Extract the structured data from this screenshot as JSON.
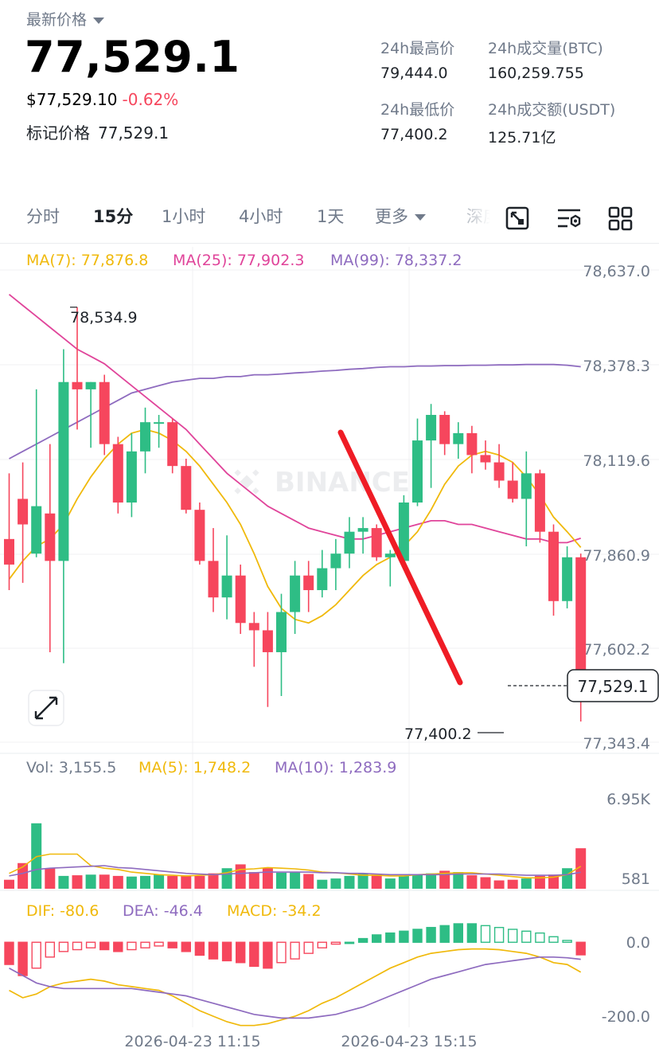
{
  "header": {
    "label": "最新价格",
    "last_price": "77,529.1",
    "usd_price": "$77,529.10",
    "change_pct": "-0.62%",
    "mark_label": "标记价格",
    "mark_price": "77,529.1",
    "stats": [
      {
        "label": "24h最高价",
        "value": "79,444.0"
      },
      {
        "label": "24h成交量(BTC)",
        "value": "160,259.755"
      },
      {
        "label": "24h最低价",
        "value": "77,400.2"
      },
      {
        "label": "24h成交额(USDT)",
        "value": "125.71亿"
      }
    ]
  },
  "tabs": [
    "分时",
    "15分",
    "1小时",
    "4小时",
    "1天",
    "更多",
    "深度"
  ],
  "active_tab": "15分",
  "colors": {
    "up": "#2ebd85",
    "down": "#f6465d",
    "ma7": "#f0b90b",
    "ma25": "#e0449a",
    "ma99": "#8e6bbf",
    "trend_line": "#ef1c25"
  },
  "legend": {
    "ma7": "MA(7): 77,876.8",
    "ma25": "MA(25): 77,902.3",
    "ma99": "MA(99): 78,337.2",
    "vol": "Vol: 3,155.5",
    "vol_ma5": "MA(5): 1,748.2",
    "vol_ma10": "MA(10): 1,283.9",
    "dif": "DIF: -80.6",
    "dea": "DEA: -46.4",
    "macd": "MACD: -34.2"
  },
  "chart_data": {
    "type": "candlestick",
    "interval": "15m",
    "price_axis_ticks": [
      "78,637.0",
      "78,378.3",
      "78,119.6",
      "77,860.9",
      "77,602.2",
      "77,343.4"
    ],
    "ylim": [
      77343.4,
      78637.0
    ],
    "high_marker": "78,534.9",
    "low_marker": "77,400.2",
    "current_price_tag": "77,529.1",
    "watermark": "BINANCE",
    "x_tick_labels": [
      "2026-04-23 11:15",
      "2026-04-23 15:15"
    ],
    "candles": [
      {
        "o": 77900,
        "h": 78080,
        "l": 77760,
        "c": 77830
      },
      {
        "o": 78010,
        "h": 78110,
        "l": 77780,
        "c": 77940
      },
      {
        "o": 77860,
        "h": 78310,
        "l": 77850,
        "c": 77990
      },
      {
        "o": 77970,
        "h": 78160,
        "l": 77590,
        "c": 77840
      },
      {
        "o": 77840,
        "h": 78420,
        "l": 77560,
        "c": 78330
      },
      {
        "o": 78330,
        "h": 78535,
        "l": 78200,
        "c": 78310
      },
      {
        "o": 78310,
        "h": 78330,
        "l": 78150,
        "c": 78330
      },
      {
        "o": 78330,
        "h": 78350,
        "l": 78130,
        "c": 78160
      },
      {
        "o": 78160,
        "h": 78180,
        "l": 77970,
        "c": 78000
      },
      {
        "o": 78000,
        "h": 78190,
        "l": 77960,
        "c": 78140
      },
      {
        "o": 78140,
        "h": 78260,
        "l": 78080,
        "c": 78220
      },
      {
        "o": 78220,
        "h": 78240,
        "l": 78150,
        "c": 78220
      },
      {
        "o": 78220,
        "h": 78230,
        "l": 78080,
        "c": 78100
      },
      {
        "o": 78100,
        "h": 78120,
        "l": 77970,
        "c": 77980
      },
      {
        "o": 77980,
        "h": 78000,
        "l": 77830,
        "c": 77840
      },
      {
        "o": 77840,
        "h": 77930,
        "l": 77700,
        "c": 77740
      },
      {
        "o": 77740,
        "h": 77910,
        "l": 77680,
        "c": 77800
      },
      {
        "o": 77800,
        "h": 77830,
        "l": 77640,
        "c": 77670
      },
      {
        "o": 77670,
        "h": 77700,
        "l": 77550,
        "c": 77650
      },
      {
        "o": 77650,
        "h": 77700,
        "l": 77440,
        "c": 77590
      },
      {
        "o": 77590,
        "h": 77750,
        "l": 77470,
        "c": 77700
      },
      {
        "o": 77700,
        "h": 77840,
        "l": 77640,
        "c": 77800
      },
      {
        "o": 77800,
        "h": 77840,
        "l": 77700,
        "c": 77760
      },
      {
        "o": 77760,
        "h": 77870,
        "l": 77740,
        "c": 77820
      },
      {
        "o": 77820,
        "h": 77900,
        "l": 77760,
        "c": 77860
      },
      {
        "o": 77860,
        "h": 77960,
        "l": 77820,
        "c": 77920
      },
      {
        "o": 77920,
        "h": 77960,
        "l": 77860,
        "c": 77930
      },
      {
        "o": 77930,
        "h": 77940,
        "l": 77840,
        "c": 77850
      },
      {
        "o": 77850,
        "h": 77870,
        "l": 77770,
        "c": 77860
      },
      {
        "o": 77840,
        "h": 78020,
        "l": 77830,
        "c": 78000
      },
      {
        "o": 78000,
        "h": 78230,
        "l": 77990,
        "c": 78170
      },
      {
        "o": 78170,
        "h": 78270,
        "l": 78040,
        "c": 78240
      },
      {
        "o": 78240,
        "h": 78250,
        "l": 78130,
        "c": 78160
      },
      {
        "o": 78160,
        "h": 78220,
        "l": 78120,
        "c": 78190
      },
      {
        "o": 78190,
        "h": 78210,
        "l": 78080,
        "c": 78130
      },
      {
        "o": 78130,
        "h": 78170,
        "l": 78090,
        "c": 78110
      },
      {
        "o": 78110,
        "h": 78160,
        "l": 78040,
        "c": 78060
      },
      {
        "o": 78060,
        "h": 78110,
        "l": 78000,
        "c": 78010
      },
      {
        "o": 78010,
        "h": 78140,
        "l": 77880,
        "c": 78080
      },
      {
        "o": 78080,
        "h": 78090,
        "l": 77890,
        "c": 77920
      },
      {
        "o": 77920,
        "h": 77940,
        "l": 77690,
        "c": 77730
      },
      {
        "o": 77730,
        "h": 77880,
        "l": 77710,
        "c": 77850
      },
      {
        "o": 77850,
        "h": 77860,
        "l": 77400,
        "c": 77529
      }
    ],
    "ma7": [
      77790,
      77840,
      77880,
      77900,
      77940,
      78010,
      78070,
      78120,
      78160,
      78190,
      78200,
      78190,
      78170,
      78140,
      78100,
      78050,
      78000,
      77940,
      77860,
      77770,
      77710,
      77680,
      77670,
      77690,
      77720,
      77760,
      77800,
      77830,
      77850,
      77880,
      77920,
      77980,
      78050,
      78100,
      78130,
      78140,
      78130,
      78110,
      78070,
      78020,
      77960,
      77920,
      77877
    ],
    "ma25": [
      78570,
      78540,
      78510,
      78480,
      78450,
      78420,
      78400,
      78380,
      78350,
      78320,
      78290,
      78260,
      78230,
      78200,
      78160,
      78120,
      78080,
      78050,
      78020,
      77990,
      77970,
      77950,
      77930,
      77920,
      77910,
      77900,
      77900,
      77910,
      77920,
      77930,
      77940,
      77950,
      77950,
      77940,
      77940,
      77930,
      77920,
      77910,
      77900,
      77900,
      77890,
      77890,
      77902
    ],
    "ma99": [
      78120,
      78140,
      78160,
      78180,
      78200,
      78220,
      78240,
      78260,
      78280,
      78300,
      78310,
      78320,
      78330,
      78335,
      78340,
      78340,
      78345,
      78345,
      78350,
      78350,
      78352,
      78355,
      78357,
      78360,
      78362,
      78365,
      78367,
      78370,
      78372,
      78372,
      78374,
      78374,
      78375,
      78375,
      78376,
      78376,
      78377,
      78377,
      78378,
      78378,
      78378,
      78376,
      78372
    ],
    "volume": {
      "axis_ticks": [
        "6.95K",
        "581"
      ],
      "ylim": [
        0,
        6950
      ],
      "values": [
        700,
        2000,
        5100,
        1600,
        1000,
        1050,
        1100,
        1100,
        1000,
        950,
        1000,
        1100,
        1000,
        1050,
        1000,
        1200,
        1600,
        1900,
        1300,
        1600,
        1250,
        1300,
        1150,
        700,
        800,
        1000,
        1200,
        1100,
        800,
        1000,
        1100,
        1200,
        1400,
        1300,
        1050,
        900,
        650,
        700,
        800,
        1000,
        1100,
        1600,
        3155
      ],
      "ma5": [
        1200,
        1700,
        2500,
        2700,
        2700,
        2700,
        1800,
        1600,
        1500,
        1300,
        1200,
        1100,
        1050,
        1000,
        1050,
        1100,
        1250,
        1500,
        1550,
        1650,
        1600,
        1550,
        1450,
        1300,
        1250,
        1150,
        1050,
        1050,
        1000,
        1000,
        1100,
        1150,
        1200,
        1250,
        1250,
        1150,
        1050,
        950,
        850,
        850,
        900,
        1100,
        1748
      ],
      "ma10": [
        1000,
        1200,
        1500,
        1600,
        1650,
        1700,
        1750,
        1800,
        1650,
        1600,
        1500,
        1400,
        1300,
        1200,
        1150,
        1100,
        1150,
        1200,
        1250,
        1300,
        1300,
        1300,
        1300,
        1250,
        1250,
        1200,
        1200,
        1150,
        1100,
        1100,
        1100,
        1100,
        1100,
        1150,
        1150,
        1150,
        1150,
        1100,
        1050,
        1050,
        1050,
        1100,
        1284
      ]
    },
    "macd": {
      "axis_ticks": [
        "0.0",
        "-200.0"
      ],
      "ylim": [
        -230,
        50
      ],
      "hist": [
        -60,
        -90,
        -70,
        -40,
        -25,
        -20,
        -15,
        -20,
        -25,
        -20,
        -15,
        -10,
        -15,
        -25,
        -35,
        -45,
        -50,
        -55,
        -65,
        -70,
        -55,
        -45,
        -30,
        -15,
        -5,
        0,
        10,
        20,
        25,
        30,
        35,
        40,
        45,
        50,
        50,
        45,
        40,
        35,
        30,
        25,
        15,
        5,
        -34
      ],
      "dif": [
        -130,
        -150,
        -140,
        -120,
        -110,
        -105,
        -100,
        -105,
        -115,
        -120,
        -125,
        -130,
        -145,
        -165,
        -185,
        -200,
        -215,
        -225,
        -225,
        -220,
        -210,
        -200,
        -185,
        -165,
        -150,
        -130,
        -110,
        -90,
        -70,
        -55,
        -40,
        -30,
        -25,
        -20,
        -18,
        -18,
        -20,
        -25,
        -30,
        -40,
        -55,
        -60,
        -81
      ],
      "dea": [
        -70,
        -90,
        -110,
        -120,
        -125,
        -125,
        -125,
        -125,
        -125,
        -125,
        -130,
        -135,
        -140,
        -145,
        -155,
        -165,
        -175,
        -185,
        -195,
        -200,
        -205,
        -205,
        -205,
        -200,
        -195,
        -185,
        -175,
        -160,
        -145,
        -130,
        -115,
        -100,
        -90,
        -80,
        -70,
        -60,
        -55,
        -50,
        -45,
        -40,
        -40,
        -42,
        -46
      ]
    }
  }
}
